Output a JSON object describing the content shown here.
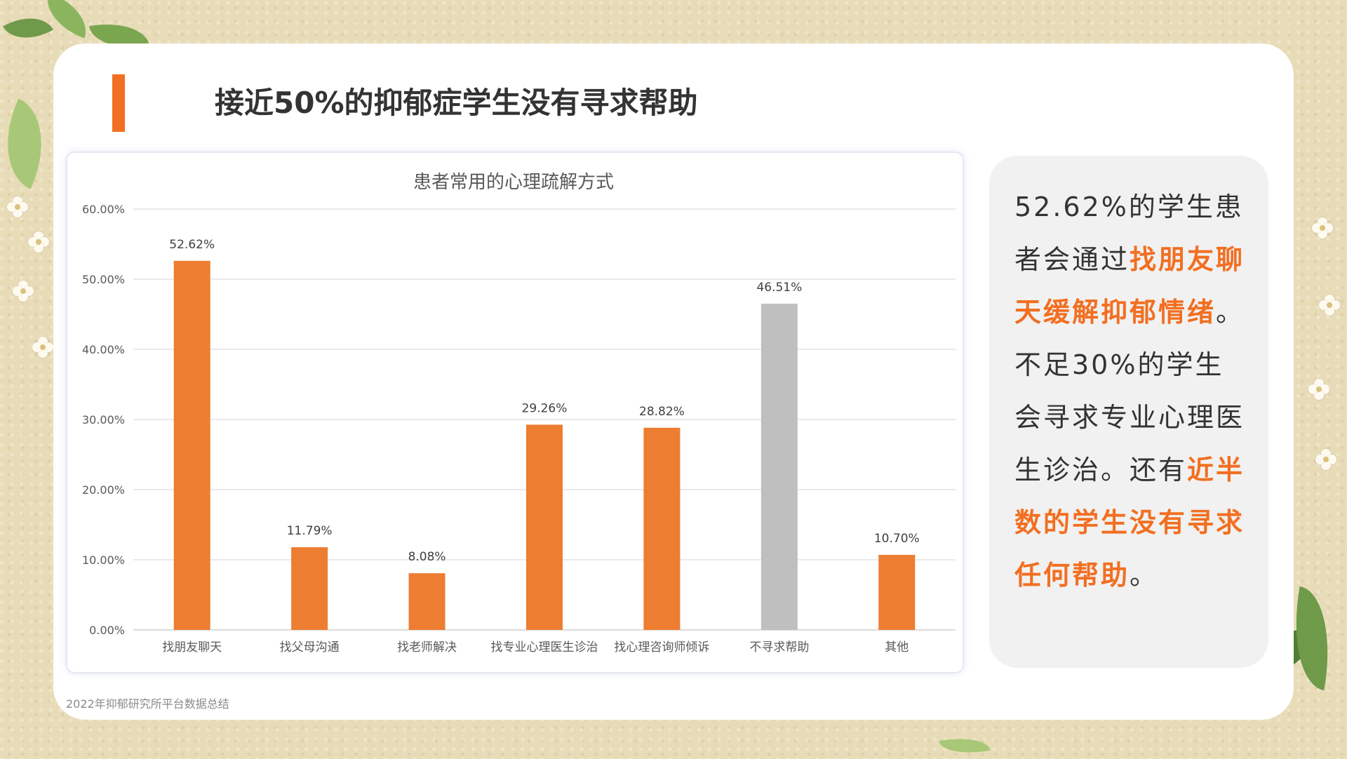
{
  "slide": {
    "title": "接近50%的抑郁症学生没有寻求帮助",
    "source_note": "2022年抑郁研究所平台数据总结",
    "accent_color": "#f26f21",
    "gray_bar_color": "#bfbfbf"
  },
  "chart_data": {
    "type": "bar",
    "title": "患者常用的心理疏解方式",
    "categories": [
      "找朋友聊天",
      "找父母沟通",
      "找老师解决",
      "找专业心理医生诊治",
      "找心理咨询师倾诉",
      "不寻求帮助",
      "其他"
    ],
    "values": [
      52.62,
      11.79,
      8.08,
      29.26,
      28.82,
      46.51,
      10.7
    ],
    "value_labels": [
      "52.62%",
      "11.79%",
      "8.08%",
      "29.26%",
      "28.82%",
      "46.51%",
      "10.70%"
    ],
    "bar_colors": [
      "#ed7d31",
      "#ed7d31",
      "#ed7d31",
      "#ed7d31",
      "#ed7d31",
      "#bfbfbf",
      "#ed7d31"
    ],
    "ylim": [
      0,
      60
    ],
    "yticks": [
      0,
      10,
      20,
      30,
      40,
      50,
      60
    ],
    "ytick_labels": [
      "0.00%",
      "10.00%",
      "20.00%",
      "30.00%",
      "40.00%",
      "50.00%",
      "60.00%"
    ],
    "grid": true,
    "legend": "none"
  },
  "panel": {
    "p1_a": "52.62%的学生患者会通过",
    "p1_b": "找朋友聊天缓解抑郁情绪",
    "p1_c": "。",
    "p2_a": "不足30%的学生会寻求专业心理医生诊治。还有",
    "p2_b": "近半数的学生没有寻求任何帮助",
    "p2_c": "。"
  }
}
